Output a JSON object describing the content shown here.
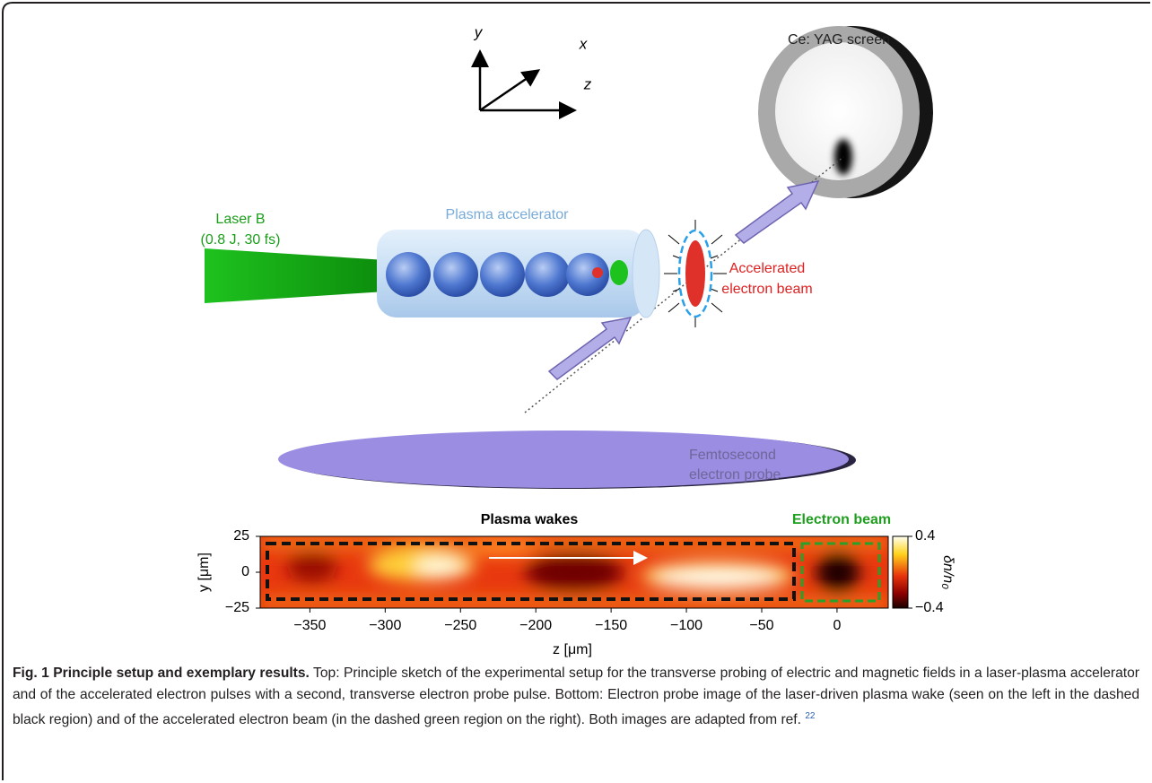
{
  "sketch": {
    "axes": {
      "y": "y",
      "x": "x",
      "z": "z"
    },
    "screen_label": "Ce: YAG screen",
    "laser_label": [
      "Laser B",
      "(0.8 J, 30 fs)"
    ],
    "plasma_label": "Plasma accelerator",
    "beam_label": [
      "Accelerated",
      "electron beam"
    ],
    "probe_label": [
      "Femtosecond",
      "electron probe"
    ]
  },
  "measurement": {
    "wakes_label": "Plasma wakes",
    "beam_label": "Electron beam",
    "xlabel": "z [μm]",
    "ylabel": "y [μm]",
    "colorbar_label": "δn/n₀",
    "xlim": [
      -383,
      34
    ],
    "ylim": [
      -25,
      25
    ],
    "clim": [
      -0.4,
      0.4
    ],
    "xticks": [
      {
        "value": -350,
        "label": "−350"
      },
      {
        "value": -300,
        "label": "−300"
      },
      {
        "value": -250,
        "label": "−250"
      },
      {
        "value": -200,
        "label": "−200"
      },
      {
        "value": -150,
        "label": "−150"
      },
      {
        "value": -100,
        "label": "−100"
      },
      {
        "value": -50,
        "label": "−50"
      },
      0
    ],
    "yticks": [
      25,
      0,
      {
        "value": -25,
        "label": "−25"
      }
    ],
    "cticks": [
      0.4,
      {
        "value": -0.4,
        "label": "−0.4"
      }
    ]
  },
  "caption": {
    "title": "Fig. 1 Principle setup and exemplary results.",
    "text": "Top: Principle sketch of the experimental setup for the transverse probing of electric and magnetic fields in a laser-plasma accelerator and of the accelerated electron pulses with a second, transverse electron probe pulse. Bottom: Electron probe image of the laser-driven plasma wake (seen on the left in the dashed black region) and of the accelerated electron beam (in the dashed green region on the right). Both images are adapted from ref.",
    "ref": "22"
  }
}
